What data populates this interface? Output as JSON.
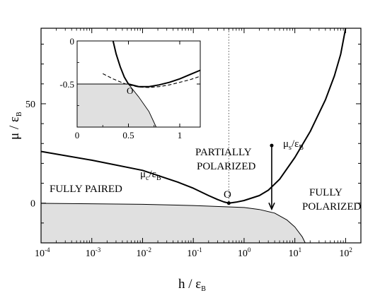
{
  "chart_data": {
    "type": "line",
    "main": {
      "x_scale": "log",
      "xlim": [
        0.0001,
        200
      ],
      "ylim": [
        -20,
        88
      ],
      "xlabel": {
        "base": "h / ε",
        "sub": "B"
      },
      "ylabel": {
        "base": "μ / ε",
        "sub": "B"
      },
      "x_ticks": [
        {
          "value": 0.0001,
          "base": "10",
          "exp": "-4"
        },
        {
          "value": 0.001,
          "base": "10",
          "exp": "-3"
        },
        {
          "value": 0.01,
          "base": "10",
          "exp": "-2"
        },
        {
          "value": 0.1,
          "base": "10",
          "exp": "-1"
        },
        {
          "value": 1,
          "base": "10",
          "exp": "0"
        },
        {
          "value": 10,
          "base": "10",
          "exp": "1"
        },
        {
          "value": 100,
          "base": "10",
          "exp": "2"
        }
      ],
      "y_ticks": [
        {
          "value": 0,
          "label": "0"
        },
        {
          "value": 50,
          "label": "50"
        }
      ],
      "series": [
        {
          "name": "μc/εB",
          "points": [
            [
              0.0001,
              26
            ],
            [
              0.001,
              21.6
            ],
            [
              0.01,
              16.5
            ],
            [
              0.05,
              10.5
            ],
            [
              0.1,
              7.5
            ],
            [
              0.2,
              3.8
            ],
            [
              0.3,
              1.8
            ],
            [
              0.4,
              0.6
            ],
            [
              0.5,
              0
            ]
          ]
        },
        {
          "name": "μs/εB",
          "points": [
            [
              0.5,
              0
            ],
            [
              0.7,
              0.5
            ],
            [
              1,
              1.3
            ],
            [
              2,
              3.8
            ],
            [
              3,
              6.5
            ],
            [
              5,
              12
            ],
            [
              10,
              23
            ],
            [
              20,
              36
            ],
            [
              40,
              52
            ],
            [
              60,
              64
            ],
            [
              80,
              75
            ],
            [
              100,
              88
            ]
          ]
        },
        {
          "name": "boundary",
          "points": [
            [
              0.0001,
              -0.1
            ],
            [
              0.01,
              -0.6
            ],
            [
              0.1,
              -1.2
            ],
            [
              1,
              -2.2
            ],
            [
              2,
              -3.2
            ],
            [
              4,
              -5
            ],
            [
              7,
              -8.5
            ],
            [
              10,
              -12
            ],
            [
              14,
              -17
            ],
            [
              16,
              -20
            ]
          ]
        }
      ],
      "fill_region": "below boundary",
      "fill_color": "#e0e0e0",
      "dotted_vline_x": 0.5,
      "point_O": {
        "x": 0.5,
        "y": 0,
        "label": "O"
      },
      "arrow": {
        "x": 3.5,
        "y_from": 29,
        "y_to": -3
      },
      "region_labels": {
        "fully_paired": "FULLY  PAIRED",
        "partially_line1": "PARTIALLY",
        "partially_line2": "POLARIZED",
        "fully_pol_line1": "FULLY",
        "fully_pol_line2": "POLARIZED"
      },
      "curve_labels": {
        "mu_c": {
          "base": "μ",
          "sub": "c",
          "over": "/ε",
          "sub2": "B"
        },
        "mu_s": {
          "base": "μ",
          "sub": "s",
          "over": "/ε",
          "sub2": "B"
        }
      }
    },
    "inset": {
      "x_scale": "linear",
      "xlim": [
        0,
        1.2
      ],
      "ylim": [
        -1.0,
        0
      ],
      "x_ticks": [
        {
          "value": 0,
          "label": "0"
        },
        {
          "value": 0.5,
          "label": "0.5"
        },
        {
          "value": 1,
          "label": "1"
        }
      ],
      "y_ticks": [
        {
          "value": 0,
          "label": "0"
        },
        {
          "value": -0.5,
          "label": "-0.5"
        }
      ],
      "series": [
        {
          "name": "solid curve",
          "points": [
            [
              0.35,
              0
            ],
            [
              0.38,
              -0.15
            ],
            [
              0.42,
              -0.3
            ],
            [
              0.46,
              -0.42
            ],
            [
              0.5,
              -0.5
            ],
            [
              0.6,
              -0.53
            ],
            [
              0.7,
              -0.53
            ],
            [
              0.8,
              -0.51
            ],
            [
              0.9,
              -0.48
            ],
            [
              1.0,
              -0.44
            ],
            [
              1.1,
              -0.39
            ],
            [
              1.2,
              -0.34
            ]
          ]
        },
        {
          "name": "dashed curve",
          "points": [
            [
              0.25,
              -0.38
            ],
            [
              0.35,
              -0.44
            ],
            [
              0.45,
              -0.49
            ],
            [
              0.5,
              -0.51
            ],
            [
              0.6,
              -0.535
            ],
            [
              0.7,
              -0.54
            ],
            [
              0.8,
              -0.53
            ],
            [
              0.9,
              -0.51
            ],
            [
              1.0,
              -0.48
            ],
            [
              1.1,
              -0.45
            ],
            [
              1.2,
              -0.41
            ]
          ]
        },
        {
          "name": "boundary",
          "points": [
            [
              0,
              -0.5
            ],
            [
              0.5,
              -0.5
            ],
            [
              0.6,
              -0.65
            ],
            [
              0.7,
              -0.82
            ],
            [
              0.77,
              -1.0
            ]
          ]
        }
      ],
      "fill_color": "#e0e0e0",
      "point_O": {
        "x": 0.5,
        "y": -0.5,
        "label": "O"
      }
    }
  }
}
